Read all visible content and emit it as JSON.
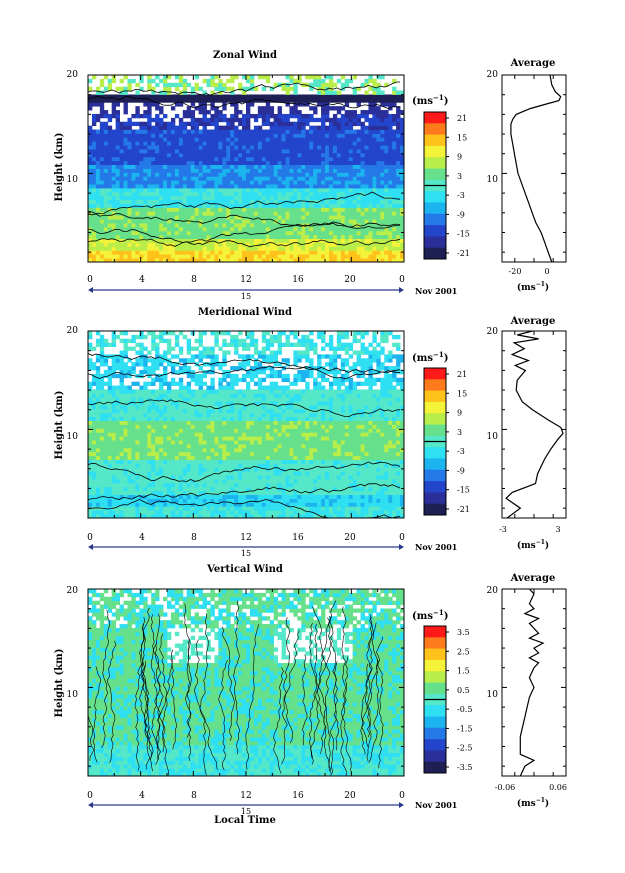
{
  "chart_data": [
    {
      "type": "heatmap",
      "title": "Zonal Wind",
      "ylabel": "Height (km)",
      "xlabel": "",
      "y_ticks": [
        "20",
        "10"
      ],
      "x_ticks": [
        "0",
        "4",
        "8",
        "12",
        "16",
        "20",
        "0"
      ],
      "date_day": "15",
      "date_month_year": "Nov 2001",
      "xlim": [
        0,
        24
      ],
      "ylim": [
        1,
        20
      ],
      "colorbar": {
        "unit": "(ms",
        "unit_exp": "−1",
        "unit_close": ")",
        "labels": [
          "21",
          "15",
          "9",
          "3",
          "-3",
          "-9",
          "-15",
          "-21"
        ]
      },
      "profile": {
        "title": "Average",
        "y_ticks": [
          "20",
          "10"
        ],
        "x_ticks": [
          "-20",
          "0"
        ],
        "xlim": [
          -28,
          8
        ],
        "unit": "(ms",
        "unit_exp": "−1",
        "unit_close": ")",
        "points": [
          [
            0,
            1
          ],
          [
            -2,
            2
          ],
          [
            -4,
            3
          ],
          [
            -6,
            4
          ],
          [
            -9,
            5
          ],
          [
            -11,
            6
          ],
          [
            -13,
            7
          ],
          [
            -15,
            8
          ],
          [
            -17,
            9
          ],
          [
            -19,
            10
          ],
          [
            -20,
            11
          ],
          [
            -21,
            12
          ],
          [
            -22,
            13
          ],
          [
            -23,
            14
          ],
          [
            -23,
            15
          ],
          [
            -22,
            15.5
          ],
          [
            -20,
            16
          ],
          [
            -12,
            16.6
          ],
          [
            -2,
            17.1
          ],
          [
            4,
            17.4
          ],
          [
            5,
            17.8
          ],
          [
            2,
            18.3
          ],
          [
            0,
            19
          ],
          [
            -1,
            20
          ]
        ]
      }
    },
    {
      "type": "heatmap",
      "title": "Meridional Wind",
      "ylabel": "Height (km)",
      "xlabel": "",
      "y_ticks": [
        "20",
        "10"
      ],
      "x_ticks": [
        "0",
        "4",
        "8",
        "12",
        "16",
        "20",
        "0"
      ],
      "date_day": "15",
      "date_month_year": "Nov 2001",
      "xlim": [
        0,
        24
      ],
      "ylim": [
        1,
        20
      ],
      "colorbar": {
        "unit": "(ms",
        "unit_exp": "−1",
        "unit_close": ")",
        "labels": [
          "21",
          "15",
          "9",
          "3",
          "-3",
          "-9",
          "-15",
          "-21"
        ]
      },
      "profile": {
        "title": "Average",
        "y_ticks": [
          "20",
          "10"
        ],
        "x_ticks": [
          "-3",
          "3"
        ],
        "xlim": [
          -3,
          3.3
        ],
        "unit": "(ms",
        "unit_exp": "−1",
        "unit_close": ")",
        "points": [
          [
            -2.5,
            1
          ],
          [
            -1.2,
            2
          ],
          [
            -2.6,
            3
          ],
          [
            -2,
            3.6
          ],
          [
            0.3,
            4.5
          ],
          [
            0.5,
            5.5
          ],
          [
            1.2,
            7
          ],
          [
            1.8,
            8
          ],
          [
            2.5,
            9
          ],
          [
            3,
            9.6
          ],
          [
            2.8,
            10.2
          ],
          [
            1.5,
            11
          ],
          [
            0,
            12
          ],
          [
            -1,
            12.8
          ],
          [
            -1.6,
            14
          ],
          [
            -1.5,
            15
          ],
          [
            -0.7,
            16
          ],
          [
            -1.7,
            16.5
          ],
          [
            -0.4,
            17
          ],
          [
            -2,
            17.6
          ],
          [
            -0.8,
            18.2
          ],
          [
            -1.8,
            18.8
          ],
          [
            0.6,
            19.2
          ],
          [
            -1.5,
            19.6
          ],
          [
            0,
            20
          ]
        ]
      }
    },
    {
      "type": "heatmap",
      "title": "Vertical Wind",
      "ylabel": "Height (km)",
      "xlabel": "Local Time",
      "y_ticks": [
        "20",
        "10"
      ],
      "x_ticks": [
        "0",
        "4",
        "8",
        "12",
        "16",
        "20",
        "0"
      ],
      "date_day": "15",
      "date_month_year": "Nov 2001",
      "xlim": [
        0,
        24
      ],
      "ylim": [
        1,
        20
      ],
      "colorbar": {
        "unit": "(ms",
        "unit_exp": "−1",
        "unit_close": ")",
        "labels": [
          "3.5",
          "2.5",
          "1.5",
          "0.5",
          "-0.5",
          "-1.5",
          "-2.5",
          "-3.5"
        ]
      },
      "profile": {
        "title": "Average",
        "y_ticks": [
          "20",
          "10"
        ],
        "x_ticks": [
          "-0.06",
          "0.06"
        ],
        "xlim": [
          -0.07,
          0.07
        ],
        "unit": "(ms",
        "unit_exp": "−1",
        "unit_close": ")",
        "points": [
          [
            -0.03,
            1
          ],
          [
            -0.02,
            2
          ],
          [
            0.0,
            2.6
          ],
          [
            -0.03,
            3.2
          ],
          [
            -0.03,
            5
          ],
          [
            -0.02,
            7
          ],
          [
            -0.01,
            9
          ],
          [
            0.0,
            10
          ],
          [
            -0.01,
            11
          ],
          [
            0.0,
            12
          ],
          [
            0.01,
            12.5
          ],
          [
            -0.01,
            13
          ],
          [
            0.01,
            13.5
          ],
          [
            0.0,
            14
          ],
          [
            0.02,
            14.5
          ],
          [
            -0.01,
            15
          ],
          [
            0.01,
            15.5
          ],
          [
            0.0,
            16
          ],
          [
            -0.01,
            16.5
          ],
          [
            0.01,
            17
          ],
          [
            -0.02,
            17.5
          ],
          [
            0.0,
            18
          ],
          [
            -0.01,
            18.5
          ],
          [
            0.0,
            19.5
          ],
          [
            -0.01,
            20
          ]
        ]
      }
    }
  ]
}
